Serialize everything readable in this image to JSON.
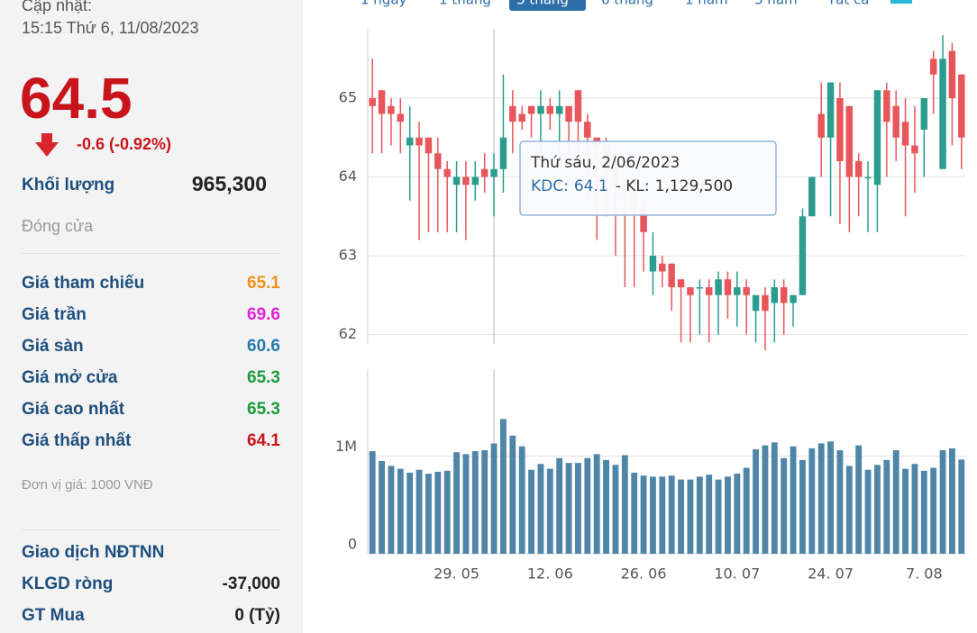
{
  "panel": {
    "updated_label": "Cập nhật:",
    "updated_time": "15:15 Thứ 6, 11/08/2023",
    "price": 64.5,
    "change": "-0.6 (-0.92%)",
    "volume_label": "Khối lượng",
    "volume": "965,300",
    "status": "Đóng cửa",
    "rows": [
      {
        "label": "Giá tham chiếu",
        "value": 65.1
      },
      {
        "label": "Giá trần",
        "value": 69.6
      },
      {
        "label": "Giá sàn",
        "value": 60.6
      },
      {
        "label": "Giá mở cửa",
        "value": 65.3
      },
      {
        "label": "Giá cao nhất",
        "value": 65.3
      },
      {
        "label": "Giá thấp nhất",
        "value": 64.1
      }
    ],
    "unit": "Đơn vị giá: 1000 VNĐ",
    "foreign_title": "Giao dịch NĐTNN",
    "foreign_rows": [
      {
        "label": "KLGD ròng",
        "value": "-37,000"
      },
      {
        "label": "GT Mua",
        "value": "0 (Tỷ)"
      }
    ]
  },
  "tabs": [
    "1 ngày",
    "1 tháng",
    "3 tháng",
    "6 tháng",
    "1 năm",
    "3 năm",
    "Tất cả"
  ],
  "chart_data": {
    "type": "candlestick",
    "categories": [
      null,
      null,
      null,
      null,
      null,
      null,
      null,
      null,
      null,
      "29. 05",
      null,
      null,
      null,
      null,
      null,
      null,
      null,
      null,
      null,
      "12. 06",
      null,
      null,
      null,
      null,
      null,
      null,
      null,
      null,
      null,
      "26. 06",
      null,
      null,
      null,
      null,
      null,
      null,
      null,
      null,
      null,
      "10. 07",
      null,
      null,
      null,
      null,
      null,
      null,
      null,
      null,
      null,
      "24. 07",
      null,
      null,
      null,
      null,
      null,
      null,
      null,
      null,
      null,
      "7. 08",
      null,
      null,
      null,
      null
    ],
    "open": [
      65.0,
      65.1,
      64.9,
      64.8,
      64.4,
      64.5,
      64.5,
      64.3,
      64.1,
      63.9,
      64.0,
      63.9,
      64.1,
      64.0,
      64.1,
      64.9,
      64.8,
      64.9,
      64.8,
      64.9,
      64.8,
      64.9,
      65.1,
      64.7,
      64.5,
      64.4,
      64.1,
      63.9,
      63.8,
      63.6,
      62.8,
      62.9,
      62.9,
      62.7,
      62.6,
      62.6,
      62.6,
      62.5,
      62.7,
      62.5,
      62.6,
      62.3,
      62.5,
      62.4,
      62.6,
      62.4,
      62.5,
      63.5,
      64.8,
      64.5,
      65.0,
      64.9,
      64.2,
      64.0,
      63.9,
      65.1,
      64.9,
      64.7,
      64.4,
      64.6,
      65.5,
      64.1,
      65.6,
      65.3
    ],
    "high": [
      65.5,
      65.1,
      65.0,
      65.0,
      64.9,
      64.7,
      64.5,
      64.5,
      64.2,
      64.2,
      64.2,
      64.2,
      64.3,
      64.3,
      65.3,
      65.1,
      64.9,
      64.9,
      65.1,
      65.0,
      65.1,
      64.9,
      65.1,
      64.8,
      64.5,
      64.5,
      64.2,
      64.0,
      64.0,
      63.7,
      63.3,
      63.0,
      62.9,
      62.7,
      62.6,
      62.7,
      62.7,
      62.8,
      62.8,
      62.8,
      62.7,
      62.5,
      62.6,
      62.7,
      62.7,
      62.5,
      63.6,
      64.0,
      65.2,
      65.2,
      65.2,
      64.9,
      64.3,
      64.2,
      65.1,
      65.2,
      65.1,
      65.0,
      64.9,
      65.0,
      65.6,
      65.8,
      65.7,
      65.3
    ],
    "low": [
      64.3,
      64.3,
      64.4,
      64.3,
      63.7,
      63.2,
      63.3,
      63.3,
      63.3,
      63.3,
      63.2,
      63.7,
      63.8,
      63.5,
      63.8,
      64.3,
      64.6,
      64.5,
      64.3,
      64.6,
      64.2,
      64.3,
      64.2,
      63.7,
      63.2,
      63.5,
      63.0,
      62.6,
      62.6,
      62.8,
      62.5,
      62.6,
      62.3,
      61.9,
      61.9,
      62.0,
      61.9,
      62.0,
      62.2,
      62.1,
      62.0,
      61.9,
      61.8,
      61.9,
      62.0,
      62.1,
      62.5,
      63.5,
      64.0,
      63.5,
      63.4,
      63.3,
      63.5,
      63.3,
      63.3,
      64.0,
      64.2,
      63.5,
      63.8,
      64.0,
      64.8,
      64.1,
      64.4,
      64.1
    ],
    "close": [
      64.9,
      64.8,
      64.8,
      64.7,
      64.5,
      64.4,
      64.3,
      64.1,
      64.0,
      64.0,
      63.9,
      64.0,
      64.0,
      64.1,
      64.5,
      64.7,
      64.7,
      64.8,
      64.9,
      64.8,
      64.9,
      64.7,
      64.7,
      64.5,
      64.4,
      64.1,
      63.9,
      63.8,
      63.6,
      63.3,
      63.0,
      62.8,
      62.6,
      62.6,
      62.5,
      62.6,
      62.5,
      62.7,
      62.5,
      62.6,
      62.5,
      62.5,
      62.3,
      62.6,
      62.4,
      62.5,
      63.5,
      64.0,
      64.5,
      65.2,
      64.2,
      64.0,
      64.0,
      64.0,
      65.1,
      64.7,
      64.5,
      64.4,
      64.3,
      65.0,
      65.3,
      65.5,
      65.0,
      64.5
    ],
    "volume": [
      1050000,
      950000,
      900000,
      870000,
      830000,
      860000,
      820000,
      840000,
      850000,
      1040000,
      1020000,
      1050000,
      1060000,
      1129500,
      1380000,
      1210000,
      1100000,
      860000,
      920000,
      870000,
      980000,
      930000,
      930000,
      980000,
      1020000,
      960000,
      910000,
      1010000,
      830000,
      800000,
      790000,
      790000,
      800000,
      760000,
      760000,
      790000,
      810000,
      760000,
      790000,
      820000,
      880000,
      1070000,
      1110000,
      1140000,
      980000,
      1100000,
      960000,
      1080000,
      1130000,
      1150000,
      1060000,
      900000,
      1110000,
      860000,
      910000,
      960000,
      1060000,
      870000,
      920000,
      850000,
      880000,
      1060000,
      1080000,
      965300
    ],
    "up_color": "#2a9d8f",
    "down_color": "#e8555a",
    "volume_color": "#4f86a8",
    "ylim": [
      61.88,
      65.88
    ],
    "yticks": [
      62,
      63,
      64,
      65
    ],
    "volume_ylim": [
      0,
      1890000
    ],
    "volume_yticks": [
      0,
      {
        "value": 1000000,
        "label": "1M"
      }
    ],
    "grid": true,
    "tooltip": {
      "title": "Thứ sáu, 2/06/2023",
      "symbol": "KDC:",
      "separator": "- KL:",
      "volume_text": "1,129,500"
    }
  }
}
